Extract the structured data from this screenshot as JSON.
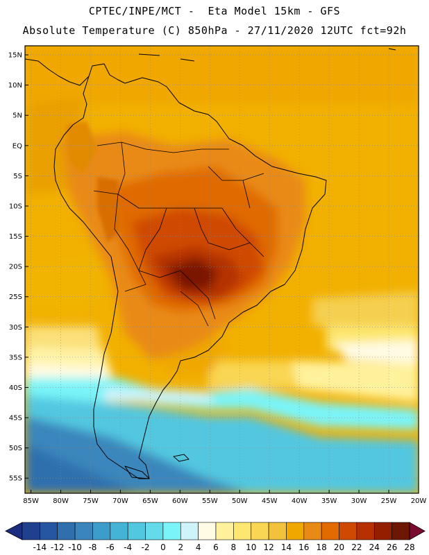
{
  "header": {
    "line1": "CPTEC/INPE/MCT -  Eta Model 15km - GFS",
    "line2": "Absolute Temperature (C) 850hPa - 27/11/2020 12UTC fct=92h"
  },
  "map": {
    "lat_labels": [
      "15N",
      "10N",
      "5N",
      "EQ",
      "5S",
      "10S",
      "15S",
      "20S",
      "25S",
      "30S",
      "35S",
      "40S",
      "45S",
      "50S",
      "55S"
    ],
    "lon_labels": [
      "85W",
      "80W",
      "75W",
      "70W",
      "65W",
      "60W",
      "55W",
      "50W",
      "45W",
      "40W",
      "35W",
      "30W",
      "25W",
      "20W"
    ],
    "lon_range": [
      -86,
      -20
    ],
    "lat_range": [
      16.5,
      -57.5
    ]
  },
  "colorbar": {
    "colors": [
      "#1f3f8f",
      "#2656a0",
      "#2f6fae",
      "#3a86bc",
      "#3c9dca",
      "#45b3d6",
      "#52c7e0",
      "#63dbea",
      "#7af4f8",
      "#cff3fb",
      "#fffbe4",
      "#fff29c",
      "#fde770",
      "#f9d653",
      "#f3c23c",
      "#efa800",
      "#e88a16",
      "#e26a00",
      "#cf4a00",
      "#b73000",
      "#941e00",
      "#6e1700"
    ],
    "under_color": "#1c2d80",
    "over_color": "#7a0a2e",
    "tick_labels": [
      "-14",
      "-12",
      "-10",
      "-8",
      "-6",
      "-4",
      "-2",
      "0",
      "2",
      "4",
      "6",
      "8",
      "10",
      "12",
      "14",
      "16",
      "18",
      "20",
      "22",
      "24",
      "26",
      "28"
    ]
  }
}
